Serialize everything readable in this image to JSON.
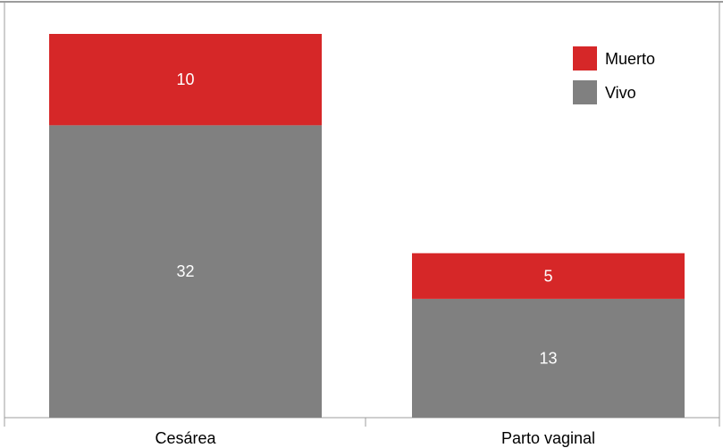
{
  "chart_data": {
    "type": "bar",
    "stacked": true,
    "categories": [
      "Cesárea",
      "Parto vaginal"
    ],
    "series": [
      {
        "name": "Vivo",
        "values": [
          32,
          13
        ],
        "color": "#808080"
      },
      {
        "name": "Muerto",
        "values": [
          10,
          5
        ],
        "color": "#d62728"
      }
    ],
    "ylim": [
      0,
      42
    ],
    "grid": false,
    "legend": {
      "position": "top-right",
      "entries": [
        {
          "name": "Muerto",
          "color": "#d62728"
        },
        {
          "name": "Vivo",
          "color": "#808080"
        }
      ]
    },
    "frame_color": "#9c9c9c",
    "title": "",
    "xlabel": "",
    "ylabel": ""
  }
}
